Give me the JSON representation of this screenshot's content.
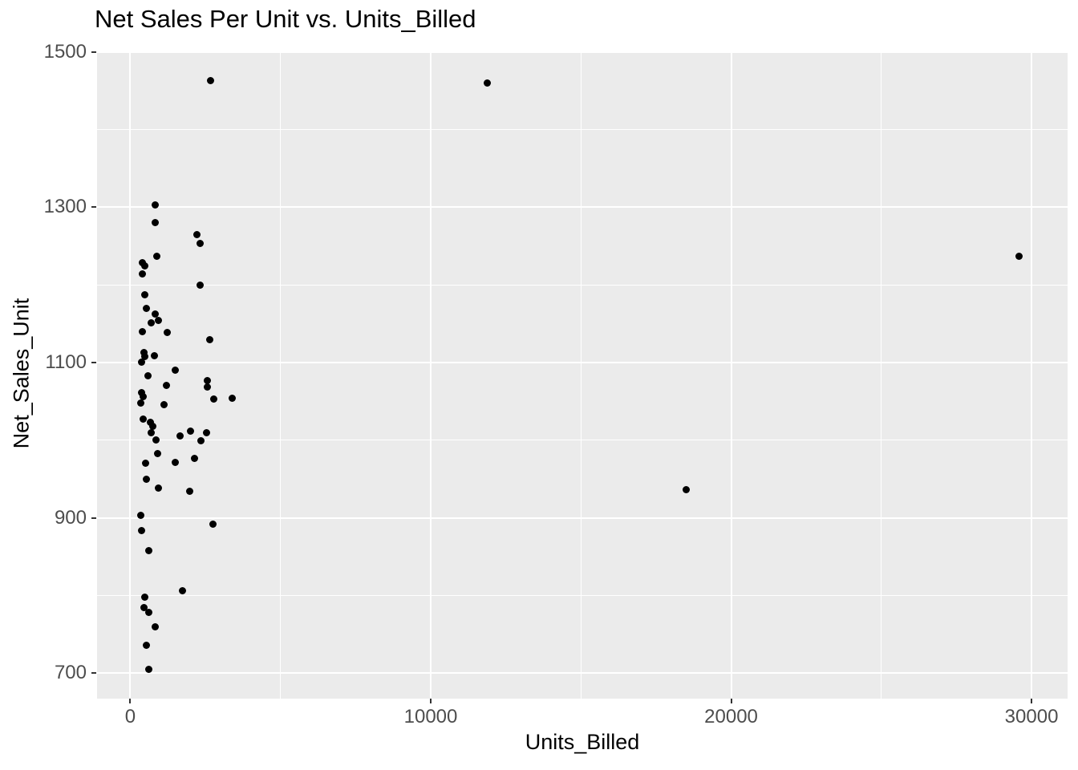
{
  "chart_data": {
    "type": "scatter",
    "title": "Net Sales Per Unit vs. Units_Billed",
    "xlabel": "Units_Billed",
    "ylabel": "Net_Sales_Unit",
    "grid": "major-minor",
    "legend_position": "none",
    "point_color": "#000000",
    "panel_color": "#ebebeb",
    "gridline_color": "#ffffff",
    "tick_label_color": "#4d4d4d",
    "x_axis": {
      "ticks": [
        0,
        10000,
        20000,
        30000
      ],
      "minor_ticks": [
        5000,
        15000,
        25000
      ],
      "range": [
        -1108,
        31200
      ]
    },
    "y_axis": {
      "ticks": [
        700,
        900,
        1100,
        1300,
        1500
      ],
      "minor_ticks": [
        800,
        1000,
        1200,
        1400
      ],
      "range": [
        667,
        1501
      ]
    },
    "points": [
      [
        2675,
        1463
      ],
      [
        11870,
        1460
      ],
      [
        820,
        1303
      ],
      [
        840,
        1280
      ],
      [
        2220,
        1265
      ],
      [
        2310,
        1254
      ],
      [
        29580,
        1237
      ],
      [
        890,
        1237
      ],
      [
        395,
        1229
      ],
      [
        490,
        1225
      ],
      [
        395,
        1214
      ],
      [
        2330,
        1200
      ],
      [
        485,
        1187
      ],
      [
        545,
        1170
      ],
      [
        820,
        1163
      ],
      [
        925,
        1154
      ],
      [
        700,
        1151
      ],
      [
        395,
        1140
      ],
      [
        1230,
        1139
      ],
      [
        2640,
        1129
      ],
      [
        450,
        1113
      ],
      [
        805,
        1109
      ],
      [
        485,
        1108
      ],
      [
        380,
        1101
      ],
      [
        1505,
        1090
      ],
      [
        575,
        1083
      ],
      [
        2570,
        1077
      ],
      [
        1210,
        1071
      ],
      [
        2570,
        1069
      ],
      [
        385,
        1061
      ],
      [
        440,
        1056
      ],
      [
        3395,
        1054
      ],
      [
        2785,
        1053
      ],
      [
        360,
        1048
      ],
      [
        1130,
        1046
      ],
      [
        440,
        1027
      ],
      [
        680,
        1023
      ],
      [
        735,
        1018
      ],
      [
        2010,
        1012
      ],
      [
        705,
        1010
      ],
      [
        2545,
        1010
      ],
      [
        1650,
        1005
      ],
      [
        865,
        1000
      ],
      [
        2360,
        999
      ],
      [
        920,
        983
      ],
      [
        2145,
        977
      ],
      [
        1505,
        971
      ],
      [
        495,
        970
      ],
      [
        545,
        950
      ],
      [
        945,
        938
      ],
      [
        18500,
        936
      ],
      [
        1985,
        934
      ],
      [
        360,
        903
      ],
      [
        2755,
        892
      ],
      [
        385,
        883
      ],
      [
        625,
        858
      ],
      [
        1735,
        806
      ],
      [
        485,
        798
      ],
      [
        450,
        784
      ],
      [
        610,
        778
      ],
      [
        840,
        760
      ],
      [
        540,
        736
      ],
      [
        620,
        705
      ]
    ]
  }
}
